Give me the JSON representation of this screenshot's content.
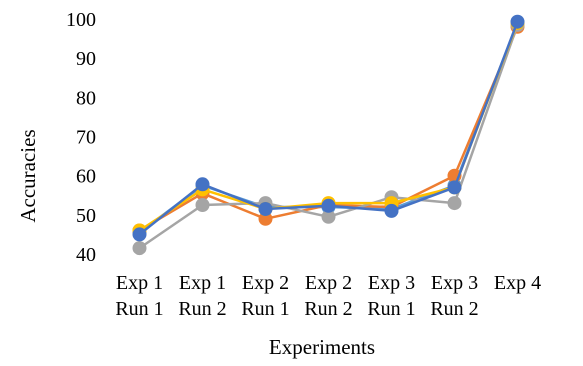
{
  "chart_data": {
    "type": "line",
    "title": "",
    "xlabel": "Experiments",
    "ylabel": "Accuracies",
    "ylim": [
      40,
      100
    ],
    "yticks": [
      40,
      50,
      60,
      70,
      80,
      90,
      100
    ],
    "grid": false,
    "legend": "none",
    "categories": [
      [
        "Exp 1",
        "Run 1"
      ],
      [
        "Exp 1",
        "Run 2"
      ],
      [
        "Exp 2",
        "Run 1"
      ],
      [
        "Exp 2",
        "Run 2"
      ],
      [
        "Exp 3",
        "Run 1"
      ],
      [
        "Exp 3",
        "Run 2"
      ],
      [
        "Exp 4"
      ]
    ],
    "series": [
      {
        "color": "#5B9BD5",
        "values": [
          45.5,
          57.5,
          52.0,
          52.0,
          51.5,
          57.5,
          99.0
        ]
      },
      {
        "color": "#ED7D31",
        "values": [
          46.0,
          55.5,
          49.0,
          52.5,
          52.0,
          60.0,
          98.0
        ]
      },
      {
        "color": "#A5A5A5",
        "values": [
          41.5,
          52.5,
          53.0,
          49.5,
          54.5,
          53.0,
          98.5
        ]
      },
      {
        "color": "#FFC000",
        "values": [
          46.0,
          56.5,
          51.5,
          53.0,
          53.0,
          57.0,
          99.0
        ]
      },
      {
        "color": "#4472C4",
        "values": [
          45.0,
          57.8,
          51.5,
          52.3,
          51.0,
          57.0,
          99.3
        ]
      }
    ]
  }
}
